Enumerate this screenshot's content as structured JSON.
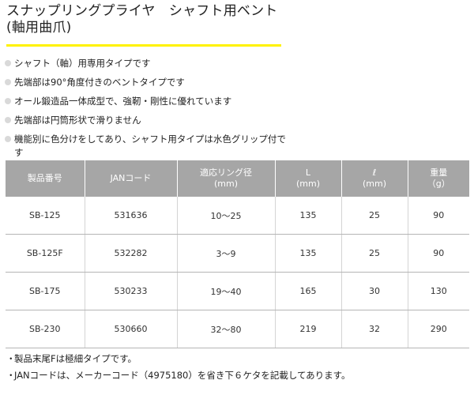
{
  "title": {
    "line1": "スナップリングプライヤ　シャフト用ベント",
    "line2": "(軸用曲爪)"
  },
  "features": [
    "シャフト（軸）用専用タイプです",
    "先端部は90°角度付きのベントタイプです",
    "オール鍛造品一体成型で、強靭・剛性に優れています",
    "先端部は円筒形状で滑りません",
    "機能別に色分けをしてあり、シャフト用タイプは水色グリップ付です"
  ],
  "table": {
    "headers": [
      [
        "製品番号"
      ],
      [
        "JANコード"
      ],
      [
        "適応リング径",
        "(mm)"
      ],
      [
        "L",
        "(mm)"
      ],
      [
        "ℓ",
        "(mm)"
      ],
      [
        "重量",
        "（g）"
      ]
    ],
    "rows": [
      [
        "SB-125",
        "531636",
        "10～25",
        "135",
        "25",
        "90"
      ],
      [
        "SB-125F",
        "532282",
        "3～9",
        "135",
        "25",
        "90"
      ],
      [
        "SB-175",
        "530233",
        "19～40",
        "165",
        "30",
        "130"
      ],
      [
        "SB-230",
        "530660",
        "32～80",
        "219",
        "32",
        "290"
      ]
    ]
  },
  "notes": [
    "製品末尾Fは極細タイプです。",
    "JANコードは、メーカーコード（4975180）を省き下６ケタを記載してあります。"
  ],
  "notes_bullet": "・",
  "colors": {
    "accent_rule": "#fff200",
    "header_bg": "#a6a6a6",
    "bullet": "#d9d9d9"
  }
}
